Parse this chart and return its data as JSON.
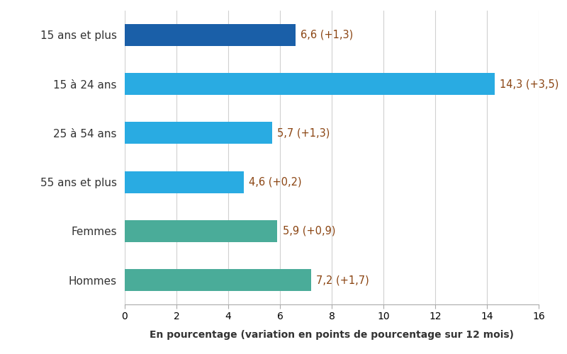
{
  "categories": [
    "15 ans et plus",
    "15 à 24 ans",
    "25 à 54 ans",
    "55 ans et plus",
    "Femmes",
    "Hommes"
  ],
  "values": [
    6.6,
    14.3,
    5.7,
    4.6,
    5.9,
    7.2
  ],
  "labels": [
    "6,6 (+1,3)",
    "14,3 (+3,5)",
    "5,7 (+1,3)",
    "4,6 (+0,2)",
    "5,9 (+0,9)",
    "7,2 (+1,7)"
  ],
  "colors": [
    "#1a5fa8",
    "#29abe2",
    "#29abe2",
    "#29abe2",
    "#4aac99",
    "#4aac99"
  ],
  "xlabel": "En pourcentage (variation en points de pourcentage sur 12 mois)",
  "xlim": [
    0,
    16
  ],
  "xticks": [
    0,
    2,
    4,
    6,
    8,
    10,
    12,
    14,
    16
  ],
  "label_color": "#8B4513",
  "label_fontsize": 10.5,
  "category_fontsize": 11,
  "xlabel_fontsize": 10,
  "bar_height": 0.45,
  "figsize": [
    8.0,
    5.0
  ],
  "dpi": 100,
  "background_color": "#ffffff",
  "grid_color": "#d0d0d0",
  "text_color": "#333333"
}
